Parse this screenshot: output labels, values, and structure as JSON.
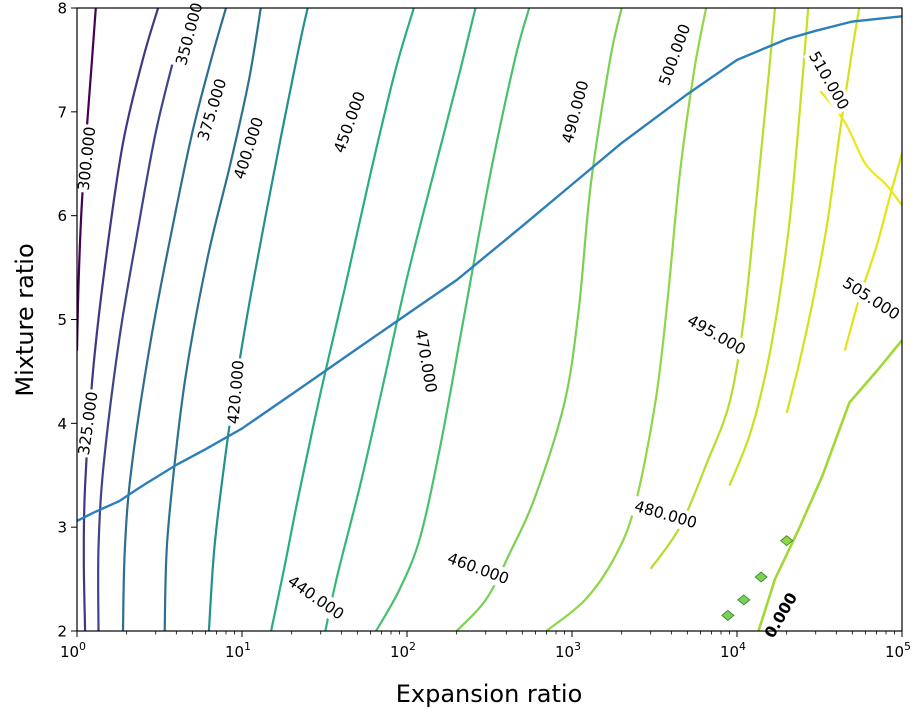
{
  "chart_data": {
    "type": "contour",
    "xlabel": "Expansion ratio",
    "ylabel": "Mixture ratio",
    "xscale": "log",
    "xlim": [
      1,
      100000
    ],
    "ylim": [
      2,
      8
    ],
    "grid": false,
    "x_ticks": [
      {
        "value": 1,
        "base": "10",
        "exp": "0"
      },
      {
        "value": 10,
        "base": "10",
        "exp": "1"
      },
      {
        "value": 100,
        "base": "10",
        "exp": "2"
      },
      {
        "value": 1000,
        "base": "10",
        "exp": "3"
      },
      {
        "value": 10000,
        "base": "10",
        "exp": "4"
      },
      {
        "value": 100000,
        "base": "10",
        "exp": "5"
      }
    ],
    "y_ticks": [
      "2",
      "3",
      "4",
      "5",
      "6",
      "7",
      "8"
    ],
    "contours": [
      {
        "level": "300.000",
        "color": "#440154",
        "points": [
          [
            1.0,
            4.7
          ],
          [
            1.02,
            5.3
          ],
          [
            1.06,
            6.0
          ],
          [
            1.13,
            6.7
          ],
          [
            1.22,
            7.4
          ],
          [
            1.3,
            8.0
          ]
        ],
        "label": {
          "text": "300.000",
          "x": 1.15,
          "y": 6.55,
          "angle": -84
        }
      },
      {
        "level": "325.000",
        "color": "#453581",
        "points": [
          [
            1.12,
            2.0
          ],
          [
            1.1,
            2.7
          ],
          [
            1.12,
            3.4
          ],
          [
            1.25,
            4.5
          ],
          [
            1.5,
            5.6
          ],
          [
            1.9,
            6.7
          ],
          [
            2.5,
            7.5
          ],
          [
            3.1,
            8.0
          ]
        ],
        "label": {
          "text": "325.000",
          "x": 1.17,
          "y": 4.0,
          "angle": -82
        }
      },
      {
        "level": "350.000",
        "color": "#404387",
        "points": [
          [
            1.35,
            2.0
          ],
          [
            1.35,
            2.8
          ],
          [
            1.45,
            3.6
          ],
          [
            1.8,
            4.8
          ],
          [
            2.3,
            5.8
          ],
          [
            3.0,
            6.8
          ],
          [
            4.0,
            7.6
          ],
          [
            4.8,
            8.0
          ]
        ],
        "label": {
          "text": "350.000",
          "x": 4.8,
          "y": 7.75,
          "angle": -75
        }
      },
      {
        "level": "375.000",
        "color": "#2d6e8e",
        "points": [
          [
            1.9,
            2.0
          ],
          [
            1.95,
            2.8
          ],
          [
            2.15,
            3.6
          ],
          [
            2.8,
            4.8
          ],
          [
            3.8,
            5.9
          ],
          [
            5.0,
            6.8
          ],
          [
            6.5,
            7.5
          ],
          [
            8.0,
            8.0
          ]
        ],
        "label": {
          "text": "375.000",
          "x": 6.6,
          "y": 7.02,
          "angle": -73
        }
      },
      {
        "level": "400.000",
        "color": "#2c728e",
        "points": [
          [
            3.4,
            2.0
          ],
          [
            3.5,
            2.8
          ],
          [
            3.9,
            3.6
          ],
          [
            4.6,
            4.5
          ],
          [
            6.2,
            5.6
          ],
          [
            8.5,
            6.5
          ],
          [
            11.0,
            7.3
          ],
          [
            13.0,
            8.0
          ]
        ],
        "label": {
          "text": "400.000",
          "x": 11.0,
          "y": 6.65,
          "angle": -72
        }
      },
      {
        "level": "420.000",
        "color": "#21918c",
        "points": [
          [
            6.3,
            2.0
          ],
          [
            6.8,
            2.8
          ],
          [
            7.8,
            3.6
          ],
          [
            9.0,
            4.3
          ],
          [
            11.5,
            5.3
          ],
          [
            16.0,
            6.5
          ],
          [
            22.0,
            7.6
          ],
          [
            25.0,
            8.0
          ]
        ],
        "label": {
          "text": "420.000",
          "x": 9.2,
          "y": 4.3,
          "angle": -85
        }
      },
      {
        "level": "440.000",
        "color": "#28ae80",
        "points": [
          [
            15.0,
            2.0
          ],
          [
            18.0,
            2.6
          ],
          [
            22.0,
            3.3
          ],
          [
            30.0,
            4.3
          ],
          [
            42.0,
            5.3
          ],
          [
            60.0,
            6.4
          ],
          [
            85.0,
            7.4
          ],
          [
            110.0,
            8.0
          ]
        ],
        "label": {
          "text": "440.000",
          "x": 28.0,
          "y": 2.32,
          "angle": 35
        }
      },
      {
        "level": "450.000",
        "color": "#35b779",
        "points": [
          [
            32.0,
            2.0
          ],
          [
            38.0,
            2.55
          ],
          [
            52.0,
            3.4
          ],
          [
            70.0,
            4.3
          ],
          [
            100.0,
            5.4
          ],
          [
            150.0,
            6.5
          ],
          [
            210.0,
            7.4
          ],
          [
            260.0,
            8.0
          ]
        ],
        "label": {
          "text": "450.000",
          "x": 45.0,
          "y": 6.9,
          "angle": -70
        }
      },
      {
        "level": "460.000",
        "color": "#4ac16d",
        "points": [
          [
            65.0,
            2.0
          ],
          [
            90.0,
            2.4
          ],
          [
            120.0,
            2.9
          ],
          [
            160.0,
            3.8
          ],
          [
            220.0,
            5.0
          ],
          [
            320.0,
            6.4
          ],
          [
            450.0,
            7.5
          ],
          [
            550.0,
            8.0
          ]
        ],
        "label": {
          "text": "460.000",
          "x": 270.0,
          "y": 2.6,
          "angle": 20
        }
      },
      {
        "level": "470.000",
        "color": "#7ad151",
        "points": [
          [
            200.0,
            2.0
          ],
          [
            300.0,
            2.3
          ],
          [
            420.0,
            2.75
          ],
          [
            600.0,
            3.3
          ],
          [
            900.0,
            4.2
          ],
          [
            1100.0,
            5.1
          ],
          [
            1300.0,
            6.3
          ],
          [
            1700.0,
            7.5
          ],
          [
            2000.0,
            8.0
          ]
        ],
        "label": {
          "text": "470.000",
          "x": 130.0,
          "y": 4.6,
          "angle": 80
        }
      },
      {
        "level": "480.000",
        "color": "#8fd744",
        "points": [
          [
            700.0,
            2.0
          ],
          [
            1200.0,
            2.3
          ],
          [
            1800.0,
            2.7
          ],
          [
            2400.0,
            3.2
          ],
          [
            3200.0,
            4.2
          ],
          [
            3800.0,
            5.2
          ],
          [
            4500.0,
            6.4
          ],
          [
            5500.0,
            7.4
          ],
          [
            6500.0,
            8.0
          ]
        ],
        "label": {
          "text": "480.000",
          "x": 3700.0,
          "y": 3.12,
          "angle": 16
        }
      },
      {
        "level": "490.000",
        "color": "#b5de2b",
        "points": [
          [
            3000.0,
            2.6
          ],
          [
            4500.0,
            3.0
          ],
          [
            6500.0,
            3.6
          ],
          [
            9000.0,
            4.2
          ],
          [
            11000.0,
            5.0
          ],
          [
            13000.0,
            6.1
          ],
          [
            15000.0,
            7.1
          ],
          [
            17000.0,
            8.0
          ]
        ],
        "label": {
          "text": "490.000",
          "x": 1050.0,
          "y": 7.0,
          "angle": -75
        }
      },
      {
        "level": "495.000",
        "color": "#c8e020",
        "points": [
          [
            9000.0,
            3.4
          ],
          [
            12000.0,
            3.9
          ],
          [
            15000.0,
            4.5
          ],
          [
            18000.0,
            5.2
          ],
          [
            21000.0,
            6.0
          ],
          [
            24000.0,
            7.0
          ],
          [
            27000.0,
            8.0
          ]
        ],
        "label": {
          "text": "495.000",
          "x": 7500.0,
          "y": 4.85,
          "angle": 30
        }
      },
      {
        "level": "500.000",
        "color": "#d5e21a",
        "points": [
          [
            20000.0,
            4.1
          ],
          [
            24000.0,
            4.6
          ],
          [
            29000.0,
            5.2
          ],
          [
            35000.0,
            5.9
          ],
          [
            42000.0,
            6.8
          ],
          [
            50000.0,
            7.6
          ],
          [
            55000.0,
            8.0
          ]
        ],
        "label": {
          "text": "500.000",
          "x": 4200.0,
          "y": 7.55,
          "angle": -70
        }
      },
      {
        "level": "505.000",
        "color": "#e2e418",
        "points": [
          [
            45000.0,
            4.7
          ],
          [
            55000.0,
            5.2
          ],
          [
            70000.0,
            5.7
          ],
          [
            85000.0,
            6.2
          ],
          [
            100000.0,
            6.6
          ]
        ],
        "label": {
          "text": "505.000",
          "x": 65000.0,
          "y": 5.2,
          "angle": 33
        }
      },
      {
        "level": "510.000",
        "color": "#efe51c",
        "points": [
          [
            32000.0,
            7.2
          ],
          [
            45000.0,
            6.9
          ],
          [
            60000.0,
            6.5
          ],
          [
            80000.0,
            6.3
          ],
          [
            100000.0,
            6.1
          ]
        ],
        "label": {
          "text": "510.000",
          "x": 36000.0,
          "y": 7.3,
          "angle": 60
        }
      }
    ],
    "optimum_line": {
      "color": "#2c7fb8",
      "points": [
        [
          1.0,
          3.06
        ],
        [
          1.3,
          3.15
        ],
        [
          1.8,
          3.25
        ],
        [
          2.5,
          3.4
        ],
        [
          4.0,
          3.6
        ],
        [
          6.0,
          3.75
        ],
        [
          10.0,
          3.95
        ],
        [
          20.0,
          4.28
        ],
        [
          50.0,
          4.72
        ],
        [
          100.0,
          5.05
        ],
        [
          200.0,
          5.38
        ],
        [
          500.0,
          5.9
        ],
        [
          1000.0,
          6.3
        ],
        [
          2000.0,
          6.7
        ],
        [
          5000.0,
          7.17
        ],
        [
          10000.0,
          7.5
        ],
        [
          20000.0,
          7.7
        ],
        [
          30000.0,
          7.78
        ],
        [
          50000.0,
          7.87
        ],
        [
          100000.0,
          7.92
        ]
      ]
    },
    "boundary_line": {
      "color": "#a0d935",
      "points": [
        [
          13500.0,
          2.0
        ],
        [
          17000.0,
          2.5
        ],
        [
          24000.0,
          3.0
        ],
        [
          33000.0,
          3.5
        ],
        [
          48000.0,
          4.2
        ],
        [
          70000.0,
          4.5
        ],
        [
          100000.0,
          4.8
        ]
      ]
    },
    "markers": [
      {
        "x": 8800.0,
        "y": 2.15,
        "color": "#7ad151"
      },
      {
        "x": 11000.0,
        "y": 2.3,
        "color": "#7ad151"
      },
      {
        "x": 14000.0,
        "y": 2.52,
        "color": "#7ad151"
      },
      {
        "x": 20000.0,
        "y": 2.87,
        "color": "#8fd744"
      }
    ],
    "overlap_label": {
      "text": "0.000",
      "x": 18500.0,
      "y": 2.15,
      "angle": -60
    }
  }
}
